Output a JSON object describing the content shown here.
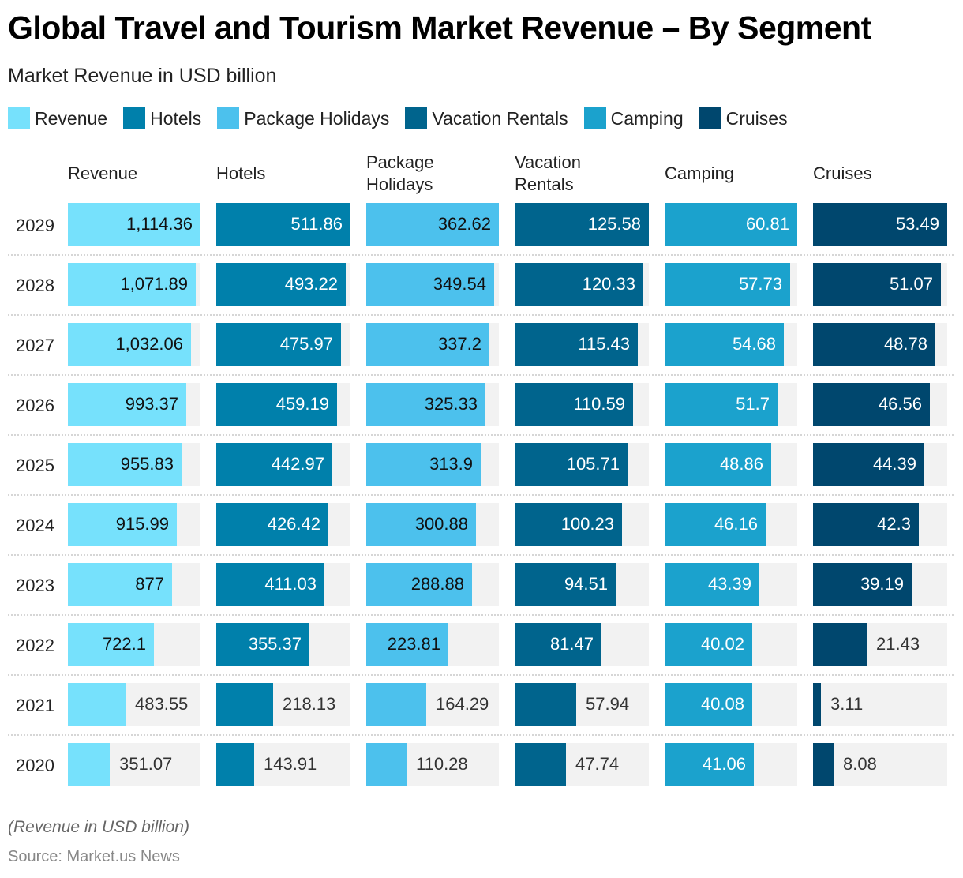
{
  "chart_data": {
    "type": "bar",
    "title": "Global Travel and Tourism Market Revenue – By Segment",
    "subtitle": "Market Revenue in USD billion",
    "xlabel": "",
    "ylabel": "",
    "note": "(Revenue in USD billion)",
    "source": "Source: Market.us News",
    "legend_position": "top-left",
    "grid": false,
    "categories": [
      "2029",
      "2028",
      "2027",
      "2026",
      "2025",
      "2024",
      "2023",
      "2022",
      "2021",
      "2020"
    ],
    "series": [
      {
        "name": "Revenue",
        "header": [
          "Revenue"
        ],
        "color": "#76e1fc",
        "label_color_inside": "#111111",
        "values": [
          1114.36,
          1071.89,
          1032.06,
          993.37,
          955.83,
          915.99,
          877,
          722.1,
          483.55,
          351.07
        ],
        "labels": [
          "1,114.36",
          "1,071.89",
          "1,032.06",
          "993.37",
          "955.83",
          "915.99",
          "877",
          "722.1",
          "483.55",
          "351.07"
        ]
      },
      {
        "name": "Hotels",
        "header": [
          "Hotels"
        ],
        "color": "#0080ab",
        "label_color_inside": "#ffffff",
        "values": [
          511.86,
          493.22,
          475.97,
          459.19,
          442.97,
          426.42,
          411.03,
          355.37,
          218.13,
          143.91
        ],
        "labels": [
          "511.86",
          "493.22",
          "475.97",
          "459.19",
          "442.97",
          "426.42",
          "411.03",
          "355.37",
          "218.13",
          "143.91"
        ]
      },
      {
        "name": "Package Holidays",
        "header": [
          "Package",
          "Holidays"
        ],
        "color": "#4cc1ed",
        "label_color_inside": "#111111",
        "values": [
          362.62,
          349.54,
          337.2,
          325.33,
          313.9,
          300.88,
          288.88,
          223.81,
          164.29,
          110.28
        ],
        "labels": [
          "362.62",
          "349.54",
          "337.2",
          "325.33",
          "313.9",
          "300.88",
          "288.88",
          "223.81",
          "164.29",
          "110.28"
        ]
      },
      {
        "name": "Vacation Rentals",
        "header": [
          "Vacation",
          "Rentals"
        ],
        "color": "#00648d",
        "label_color_inside": "#ffffff",
        "values": [
          125.58,
          120.33,
          115.43,
          110.59,
          105.71,
          100.23,
          94.51,
          81.47,
          57.94,
          47.74
        ],
        "labels": [
          "125.58",
          "120.33",
          "115.43",
          "110.59",
          "105.71",
          "100.23",
          "94.51",
          "81.47",
          "57.94",
          "47.74"
        ]
      },
      {
        "name": "Camping",
        "header": [
          "Camping"
        ],
        "color": "#1ba2cd",
        "label_color_inside": "#ffffff",
        "values": [
          60.81,
          57.73,
          54.68,
          51.7,
          48.86,
          46.16,
          43.39,
          40.02,
          40.08,
          41.06
        ],
        "labels": [
          "60.81",
          "57.73",
          "54.68",
          "51.7",
          "48.86",
          "46.16",
          "43.39",
          "40.02",
          "40.08",
          "41.06"
        ]
      },
      {
        "name": "Cruises",
        "header": [
          "Cruises"
        ],
        "color": "#00476e",
        "label_color_inside": "#ffffff",
        "values": [
          53.49,
          51.07,
          48.78,
          46.56,
          44.39,
          42.3,
          39.19,
          21.43,
          3.11,
          8.08
        ],
        "labels": [
          "53.49",
          "51.07",
          "48.78",
          "46.56",
          "44.39",
          "42.3",
          "39.19",
          "21.43",
          "3.11",
          "8.08"
        ]
      }
    ],
    "label_color_outside": "#333333",
    "track_color": "#f2f2f2"
  }
}
